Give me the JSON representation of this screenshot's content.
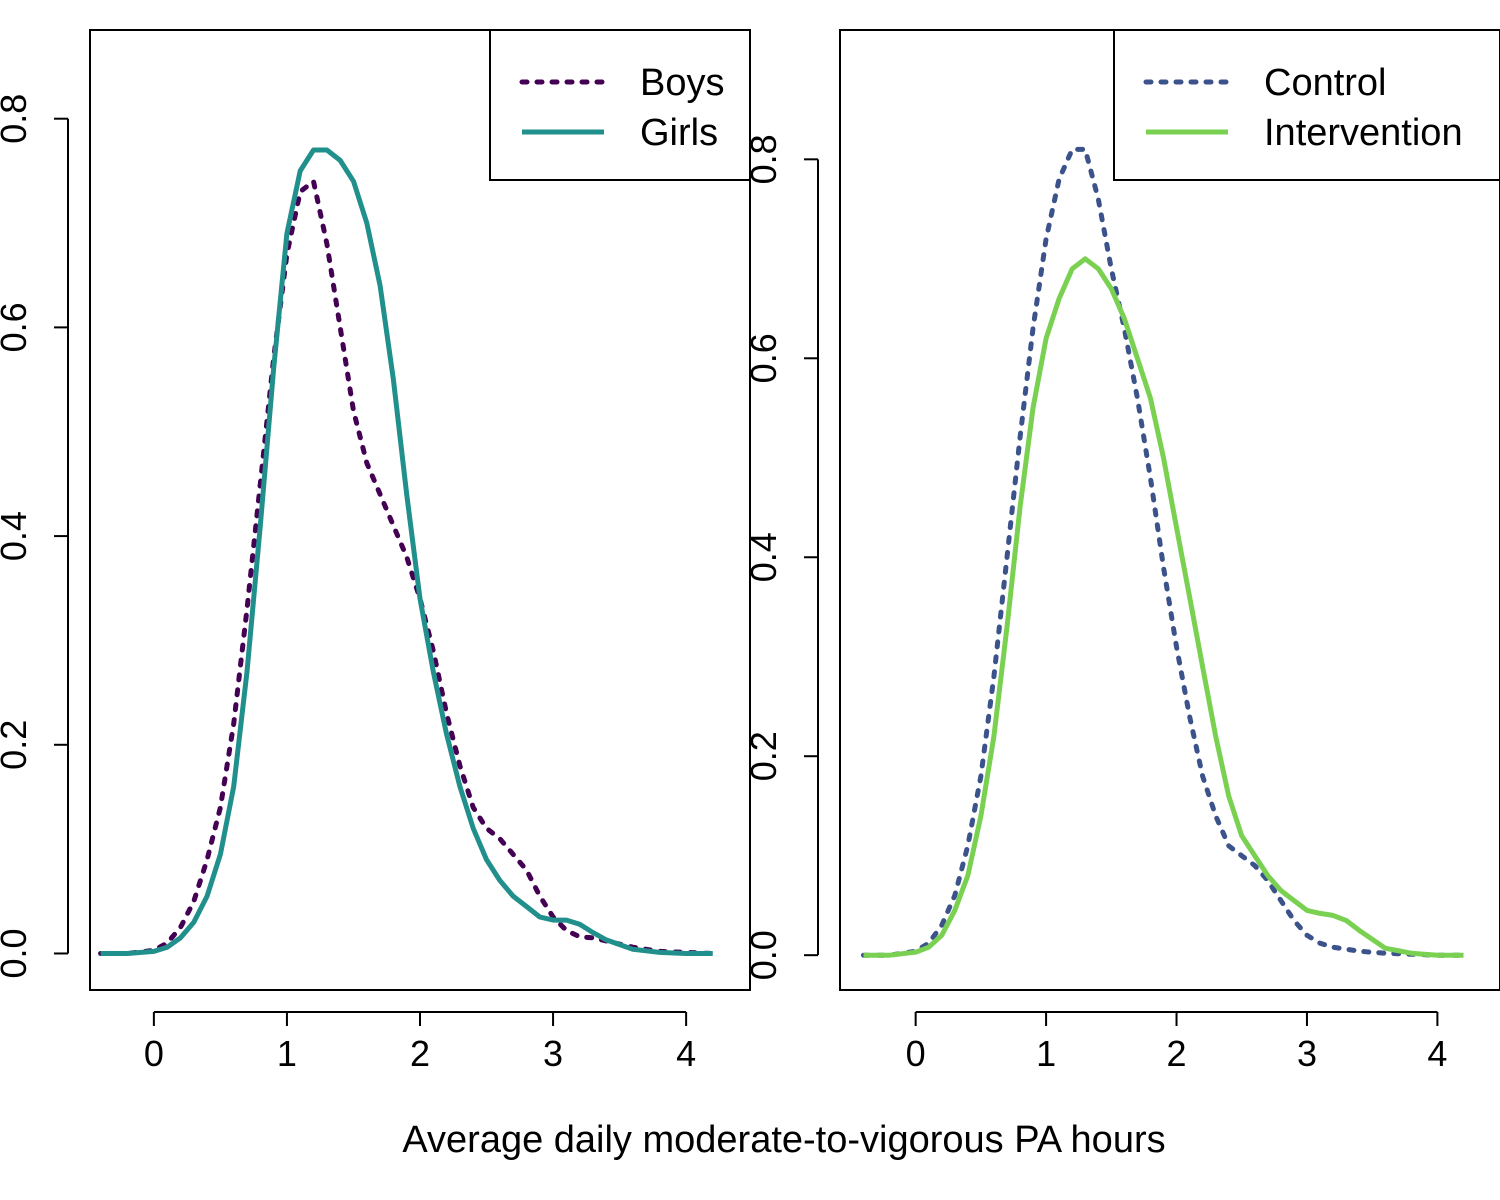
{
  "figure": {
    "shared_xlabel": "Average daily moderate-to-vigorous PA hours"
  },
  "chart_data": [
    {
      "type": "line",
      "panel": "left",
      "xlabel": "",
      "ylabel": "",
      "xlim": [
        -0.48,
        4.48
      ],
      "ylim": [
        -0.035,
        0.885
      ],
      "xticks": [
        0,
        1,
        2,
        3,
        4
      ],
      "yticks": [
        0.0,
        0.2,
        0.4,
        0.6,
        0.8
      ],
      "grid": false,
      "legend_position": "top-right",
      "series": [
        {
          "name": "Boys",
          "color": "#440154",
          "style": "dotted",
          "x": [
            -0.4,
            -0.2,
            0.0,
            0.1,
            0.2,
            0.3,
            0.4,
            0.5,
            0.6,
            0.7,
            0.8,
            0.9,
            1.0,
            1.1,
            1.2,
            1.3,
            1.4,
            1.5,
            1.6,
            1.7,
            1.8,
            1.9,
            2.0,
            2.1,
            2.2,
            2.3,
            2.4,
            2.5,
            2.6,
            2.7,
            2.8,
            2.9,
            3.0,
            3.1,
            3.2,
            3.3,
            3.4,
            3.6,
            3.8,
            4.0,
            4.2
          ],
          "y": [
            0.0,
            0.0,
            0.003,
            0.01,
            0.025,
            0.05,
            0.09,
            0.14,
            0.22,
            0.33,
            0.45,
            0.57,
            0.67,
            0.73,
            0.74,
            0.68,
            0.6,
            0.52,
            0.47,
            0.44,
            0.41,
            0.38,
            0.34,
            0.29,
            0.23,
            0.18,
            0.14,
            0.12,
            0.11,
            0.095,
            0.08,
            0.055,
            0.035,
            0.022,
            0.016,
            0.015,
            0.012,
            0.006,
            0.002,
            0.001,
            0.0
          ]
        },
        {
          "name": "Girls",
          "color": "#21908C",
          "style": "solid",
          "x": [
            -0.4,
            -0.2,
            0.0,
            0.1,
            0.2,
            0.3,
            0.4,
            0.5,
            0.6,
            0.7,
            0.8,
            0.9,
            1.0,
            1.1,
            1.2,
            1.3,
            1.4,
            1.5,
            1.6,
            1.7,
            1.8,
            1.9,
            2.0,
            2.1,
            2.2,
            2.3,
            2.4,
            2.5,
            2.6,
            2.7,
            2.8,
            2.9,
            3.0,
            3.1,
            3.2,
            3.3,
            3.4,
            3.6,
            3.8,
            4.0,
            4.2
          ],
          "y": [
            0.0,
            0.0,
            0.002,
            0.006,
            0.015,
            0.03,
            0.055,
            0.095,
            0.16,
            0.27,
            0.41,
            0.56,
            0.69,
            0.75,
            0.77,
            0.77,
            0.76,
            0.74,
            0.7,
            0.64,
            0.55,
            0.44,
            0.34,
            0.27,
            0.21,
            0.16,
            0.12,
            0.09,
            0.07,
            0.055,
            0.045,
            0.035,
            0.032,
            0.032,
            0.028,
            0.02,
            0.013,
            0.004,
            0.001,
            0.0,
            0.0
          ]
        }
      ]
    },
    {
      "type": "line",
      "panel": "right",
      "xlabel": "",
      "ylabel": "",
      "xlim": [
        -0.58,
        4.48
      ],
      "ylim": [
        -0.035,
        0.93
      ],
      "xticks": [
        0,
        1,
        2,
        3,
        4
      ],
      "yticks": [
        0.0,
        0.2,
        0.4,
        0.6,
        0.8
      ],
      "grid": false,
      "legend_position": "top-right",
      "series": [
        {
          "name": "Control",
          "color": "#3B528B",
          "style": "dotted",
          "x": [
            -0.4,
            -0.2,
            0.0,
            0.1,
            0.2,
            0.3,
            0.4,
            0.5,
            0.6,
            0.7,
            0.8,
            0.9,
            1.0,
            1.1,
            1.2,
            1.3,
            1.4,
            1.5,
            1.6,
            1.7,
            1.8,
            1.9,
            2.0,
            2.1,
            2.2,
            2.3,
            2.4,
            2.5,
            2.6,
            2.7,
            2.8,
            2.9,
            3.0,
            3.1,
            3.2,
            3.3,
            3.4,
            3.6,
            3.8,
            4.0,
            4.2
          ],
          "y": [
            0.0,
            0.0,
            0.004,
            0.012,
            0.03,
            0.06,
            0.11,
            0.18,
            0.28,
            0.4,
            0.52,
            0.63,
            0.72,
            0.78,
            0.81,
            0.81,
            0.76,
            0.69,
            0.63,
            0.56,
            0.48,
            0.39,
            0.31,
            0.24,
            0.18,
            0.14,
            0.11,
            0.1,
            0.09,
            0.075,
            0.055,
            0.035,
            0.02,
            0.012,
            0.008,
            0.006,
            0.004,
            0.002,
            0.001,
            0.0,
            0.0
          ]
        },
        {
          "name": "Intervention",
          "color": "#7AD151",
          "style": "solid",
          "x": [
            -0.4,
            -0.2,
            0.0,
            0.1,
            0.2,
            0.3,
            0.4,
            0.5,
            0.6,
            0.7,
            0.8,
            0.9,
            1.0,
            1.1,
            1.2,
            1.3,
            1.4,
            1.5,
            1.6,
            1.7,
            1.8,
            1.9,
            2.0,
            2.1,
            2.2,
            2.3,
            2.4,
            2.5,
            2.6,
            2.7,
            2.8,
            2.9,
            3.0,
            3.1,
            3.2,
            3.3,
            3.4,
            3.6,
            3.8,
            4.0,
            4.2
          ],
          "y": [
            0.0,
            0.0,
            0.003,
            0.008,
            0.02,
            0.045,
            0.08,
            0.14,
            0.22,
            0.33,
            0.45,
            0.55,
            0.62,
            0.66,
            0.69,
            0.7,
            0.69,
            0.67,
            0.64,
            0.6,
            0.56,
            0.5,
            0.43,
            0.36,
            0.29,
            0.22,
            0.16,
            0.12,
            0.1,
            0.08,
            0.065,
            0.055,
            0.045,
            0.042,
            0.04,
            0.035,
            0.025,
            0.007,
            0.002,
            0.0,
            0.0
          ]
        }
      ]
    }
  ]
}
